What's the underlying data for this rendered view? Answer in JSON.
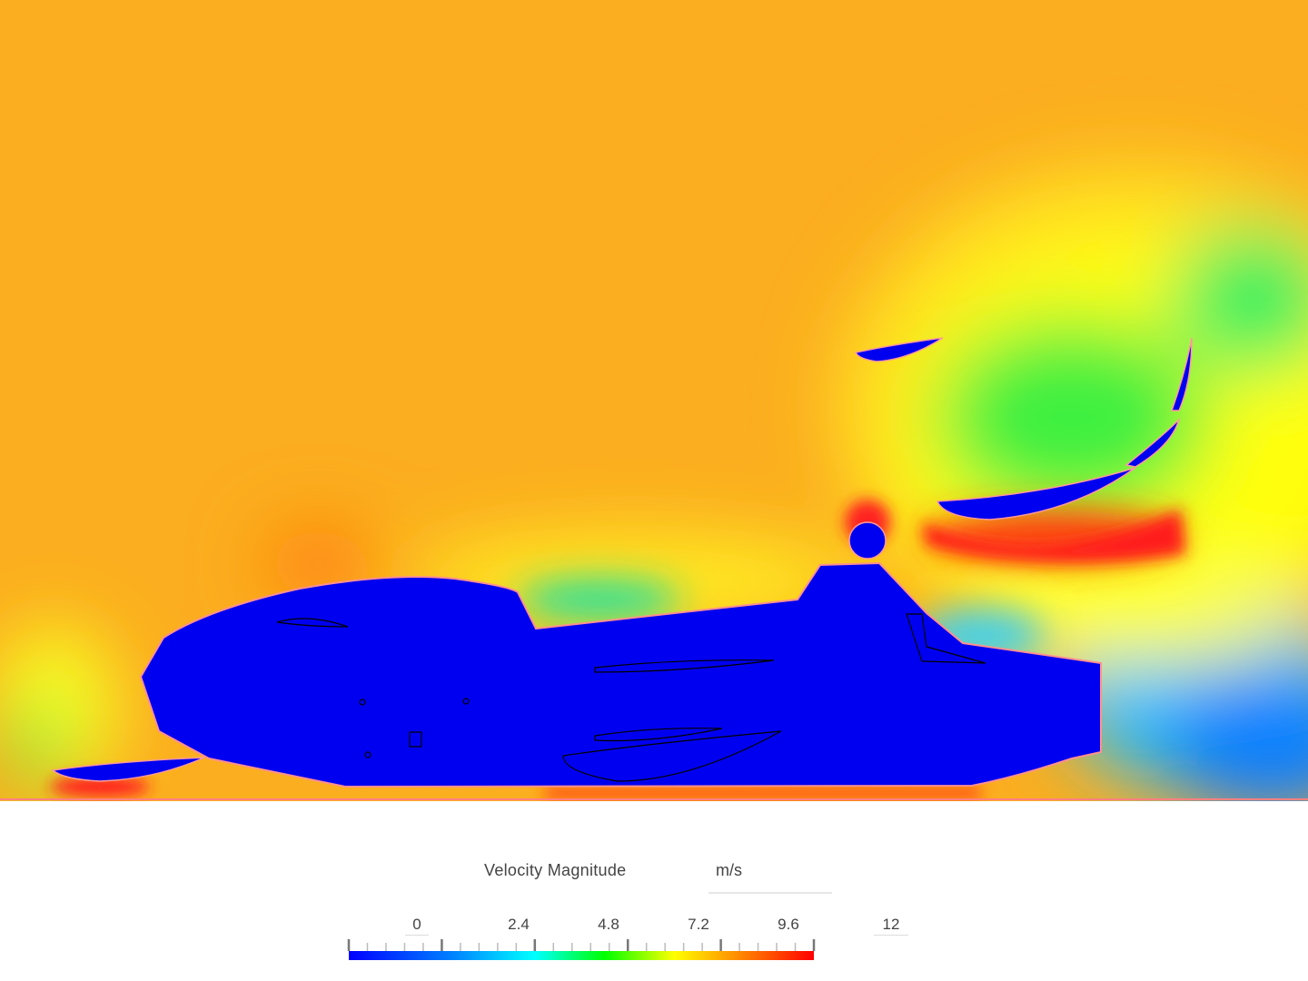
{
  "legend": {
    "title": "Velocity Magnitude",
    "unit": "m/s",
    "min": 0,
    "max": 12,
    "tick_labels": [
      "0",
      "2.4",
      "4.8",
      "7.2",
      "9.6",
      "12"
    ],
    "colormap": [
      "#0000ff",
      "#00ffff",
      "#00ff00",
      "#ffff00",
      "#ff0000"
    ]
  },
  "colors": {
    "freestream": "#fbae1f",
    "body": "#0000f0",
    "outline": "#ff8080"
  }
}
